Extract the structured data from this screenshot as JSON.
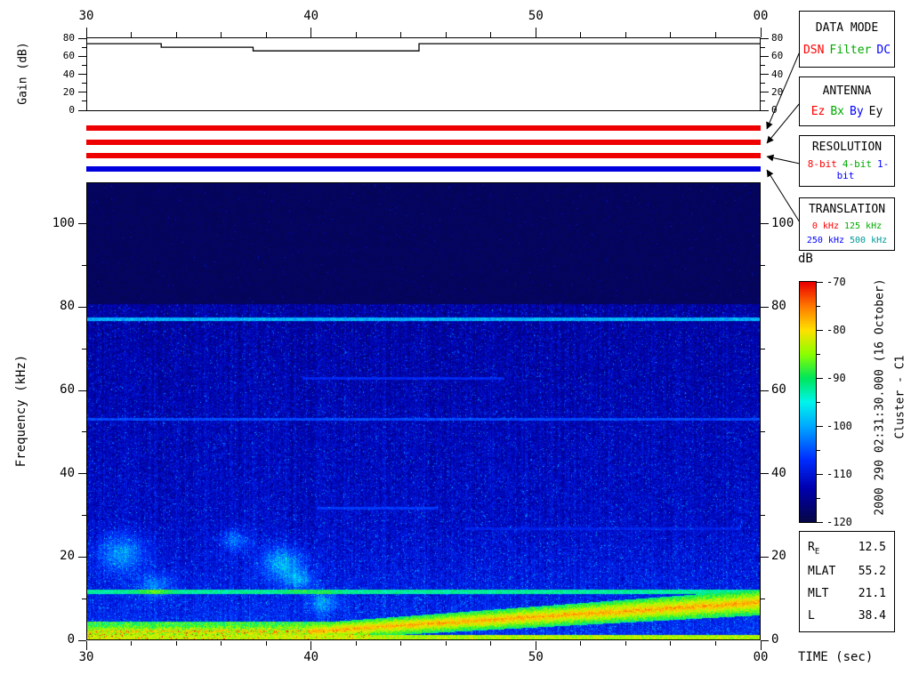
{
  "gain_panel": {
    "ylabel": "Gain (dB)",
    "yticks": [
      0,
      20,
      40,
      60,
      80
    ],
    "yticks_minor": [
      10,
      30,
      50,
      70
    ],
    "ymax": 80
  },
  "spectrogram": {
    "ylabel": "Frequency (kHz)",
    "xlabel": "TIME (sec)",
    "yticks": [
      0,
      20,
      40,
      60,
      80,
      100
    ],
    "xticks": [
      "30",
      "40",
      "50",
      "00"
    ],
    "fmax_khz": 110
  },
  "mode_bars": [
    {
      "name": "data-mode",
      "color": "#ee0000"
    },
    {
      "name": "antenna",
      "color": "#ee0000"
    },
    {
      "name": "resolution",
      "color": "#ee0000"
    },
    {
      "name": "translation",
      "color": "#0000dd"
    }
  ],
  "legend_boxes": [
    {
      "title": "DATA MODE",
      "item_size": 13,
      "lines": [
        [
          {
            "label": "DSN",
            "color": "#ff0000"
          },
          {
            "label": "Filter",
            "color": "#00aa00"
          },
          {
            "label": "DC",
            "color": "#0000ff"
          }
        ]
      ]
    },
    {
      "title": "ANTENNA",
      "item_size": 13,
      "lines": [
        [
          {
            "label": "Ez",
            "color": "#ff0000"
          },
          {
            "label": "Bx",
            "color": "#00aa00"
          },
          {
            "label": "By",
            "color": "#0000ff"
          },
          {
            "label": "Ey",
            "color": "#000000"
          }
        ]
      ]
    },
    {
      "title": "RESOLUTION",
      "item_size": 11,
      "lines": [
        [
          {
            "label": "8-bit",
            "color": "#ff0000"
          },
          {
            "label": "4-bit",
            "color": "#00aa00"
          },
          {
            "label": "1-bit",
            "color": "#0000ff"
          }
        ]
      ]
    },
    {
      "title": "TRANSLATION",
      "item_size": 10,
      "lines": [
        [
          {
            "label": "0 kHz",
            "color": "#ff0000"
          },
          {
            "label": "125 kHz",
            "color": "#00aa00"
          }
        ],
        [
          {
            "label": "250 kHz",
            "color": "#0000ff"
          },
          {
            "label": "500 kHz",
            "color": "#009999"
          }
        ]
      ]
    }
  ],
  "colorbar": {
    "label": "dB",
    "min": -120,
    "max": -70,
    "ticks": [
      -70,
      -80,
      -90,
      -100,
      -110,
      -120
    ]
  },
  "side_text": {
    "datetime": "2000 290 02:31:30.000 (16 October)",
    "spacecraft": "Cluster - C1"
  },
  "info_box": {
    "rows": [
      {
        "label": "R",
        "sub": "E",
        "value": "12.5"
      },
      {
        "label": "MLAT",
        "sub": "",
        "value": "55.2"
      },
      {
        "label": "MLT",
        "sub": "",
        "value": "21.1"
      },
      {
        "label": "L",
        "sub": "",
        "value": "38.4"
      }
    ]
  },
  "chart_data": [
    {
      "type": "line",
      "title": "Receiver gain level",
      "ylabel": "Gain (dB)",
      "ylim": [
        0,
        80
      ],
      "yticks": [
        0,
        20,
        40,
        60,
        80
      ],
      "xtick_labels": [
        "30",
        "40",
        "50",
        "00"
      ],
      "x_seconds": [
        30,
        33.3,
        33.3,
        37.4,
        37.4,
        44.8,
        44.8,
        60
      ],
      "gain_db": [
        74,
        74,
        70,
        70,
        66,
        66,
        74,
        74
      ]
    },
    {
      "type": "heatmap",
      "title": "Cluster C1 WBD electric field spectrogram",
      "xlabel": "TIME (sec)",
      "ylabel": "Frequency (kHz)",
      "xlim_sec": [
        30,
        60
      ],
      "xtick_labels": [
        "30",
        "40",
        "50",
        "00"
      ],
      "ylim_khz": [
        0,
        110
      ],
      "yticks_khz": [
        0,
        20,
        40,
        60,
        80,
        100
      ],
      "colorbar_db": {
        "label": "dB",
        "min": -120,
        "max": -70,
        "ticks": [
          -70,
          -80,
          -90,
          -100,
          -110,
          -120
        ]
      },
      "features": {
        "noise_cutoff_khz": 81,
        "background_db": -114,
        "dark_region_db": -120,
        "narrowband_lines_khz": [
          77.3,
          53.2,
          11.6
        ],
        "partial_lines": [
          {
            "khz": 63.0,
            "t0": 0.32,
            "t1": 0.62
          },
          {
            "khz": 31.8,
            "t0": 0.34,
            "t1": 0.52
          },
          {
            "khz": 26.8,
            "t0": 0.56,
            "t1": 0.97
          }
        ],
        "rising_band": {
          "flat_until_t": 0.33,
          "start_khz": 2,
          "end_khz": 9,
          "peak_db": -78
        },
        "intense_low_band": {
          "khz": [
            0,
            4.5
          ],
          "t": [
            0,
            0.42
          ],
          "peak_db": -72
        }
      }
    }
  ]
}
